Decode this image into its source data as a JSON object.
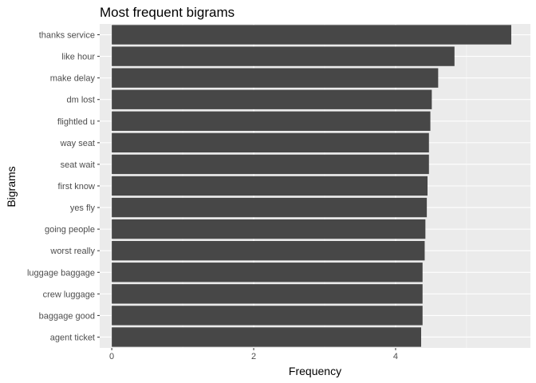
{
  "chart_data": {
    "type": "bar",
    "orientation": "horizontal",
    "title": "Most frequent bigrams",
    "xlabel": "Frequency",
    "ylabel": "Bigrams",
    "categories": [
      "thanks service",
      "like hour",
      "make delay",
      "dm lost",
      "flightled u",
      "way seat",
      "seat wait",
      "first know",
      "yes fly",
      "going people",
      "worst really",
      "luggage baggage",
      "crew luggage",
      "baggage good",
      "agent ticket"
    ],
    "values": [
      5.63,
      4.83,
      4.6,
      4.51,
      4.49,
      4.47,
      4.47,
      4.45,
      4.44,
      4.42,
      4.41,
      4.38,
      4.38,
      4.38,
      4.36
    ],
    "xlim": [
      -0.17,
      5.9
    ],
    "xticks": [
      0,
      2,
      4
    ],
    "xtick_labels": [
      "0",
      "2",
      "4"
    ],
    "grid": true,
    "legend": "none",
    "colors": {
      "panel": "#ebebeb",
      "bar": "#474747",
      "grid": "#ffffff",
      "text": "#000000",
      "tick_text": "#4d4d4d"
    }
  }
}
